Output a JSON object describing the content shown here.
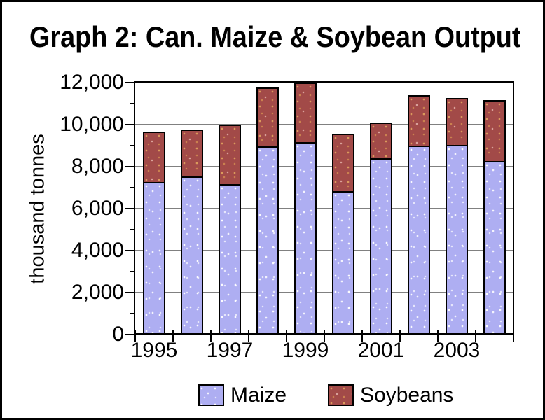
{
  "chart_data": {
    "type": "bar",
    "stacked": true,
    "title": "Graph 2: Can. Maize & Soybean Output",
    "ylabel": "thousand tonnes",
    "xlabel": "",
    "ylim": [
      0,
      12000
    ],
    "y_major_step": 2000,
    "y_minor_step": 1000,
    "grid": true,
    "legend_position": "bottom",
    "categories": [
      "1995",
      "1996",
      "1997",
      "1998",
      "1999",
      "2000",
      "2001",
      "2002",
      "2003",
      "2004"
    ],
    "x_axis_labeled_years": [
      "1995",
      "1997",
      "1999",
      "2001",
      "2003"
    ],
    "y_tick_labels": [
      "0",
      "2,000",
      "4,000",
      "6,000",
      "8,000",
      "10,000",
      "12,000"
    ],
    "series": [
      {
        "name": "Maize",
        "color": "#aeaef2",
        "values": [
          7270,
          7520,
          7180,
          8950,
          9160,
          6850,
          8390,
          9000,
          9050,
          8280
        ]
      },
      {
        "name": "Soybeans",
        "color": "#a24a48",
        "values": [
          2330,
          2190,
          2740,
          2740,
          2780,
          2650,
          1630,
          2340,
          2150,
          2820
        ]
      }
    ]
  },
  "colors": {
    "maize_fill": "#aeaef2",
    "soybean_fill": "#a24a48",
    "gridline": "#808080",
    "axis": "#000000",
    "background": "#ffffff",
    "frame_border": "#000000"
  }
}
